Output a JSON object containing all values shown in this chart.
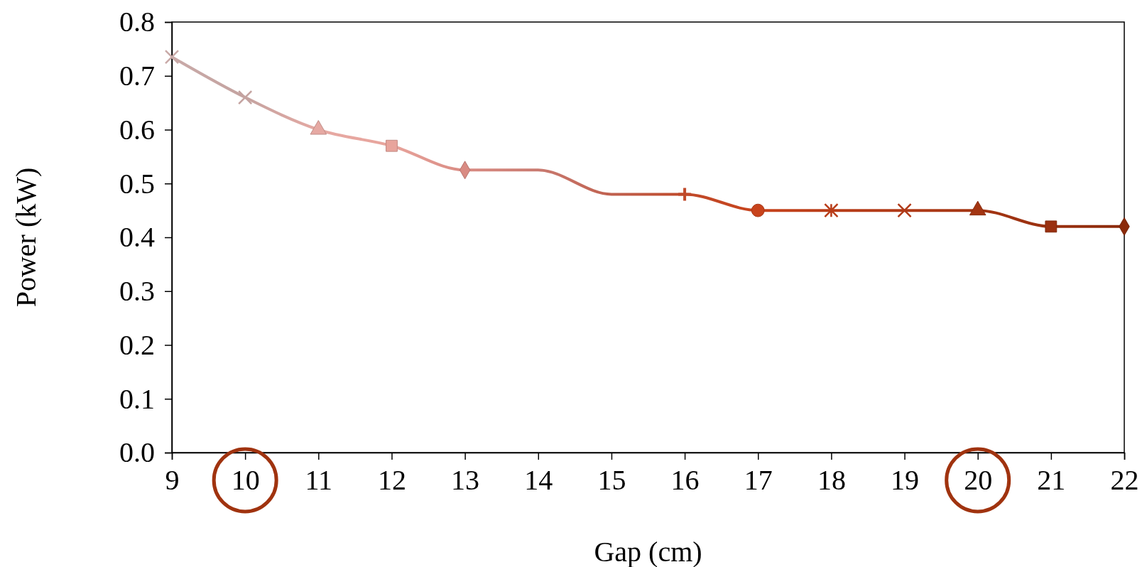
{
  "chart_data": {
    "type": "line",
    "xlabel": "Gap (cm)",
    "ylabel": "Power (kW)",
    "x": [
      9,
      10,
      11,
      12,
      13,
      14,
      15,
      16,
      17,
      18,
      19,
      20,
      21,
      22
    ],
    "xlim": [
      9,
      22
    ],
    "xticks": [
      9,
      10,
      11,
      12,
      13,
      14,
      15,
      16,
      17,
      18,
      19,
      20,
      21,
      22
    ],
    "ylim": [
      0,
      0.8
    ],
    "yticks": [
      {
        "value": 0,
        "label": "0.0"
      },
      {
        "value": 0.1,
        "label": "0.1"
      },
      {
        "value": 0.2,
        "label": "0.2"
      },
      {
        "value": 0.3,
        "label": "0.3"
      },
      {
        "value": 0.4,
        "label": "0.4"
      },
      {
        "value": 0.5,
        "label": "0.5"
      },
      {
        "value": 0.6,
        "label": "0.6"
      },
      {
        "value": 0.7,
        "label": "0.7"
      },
      {
        "value": 0.8,
        "label": "0.8"
      }
    ],
    "grid": false,
    "series": [
      {
        "values": [
          0.735,
          0.66,
          0.6,
          0.57,
          0.525,
          0.525,
          0.48,
          0.48,
          0.45,
          0.45,
          0.45,
          0.45,
          0.42,
          0.42
        ],
        "colors": [
          "#c9aaa8",
          "#c4a3a0",
          "#e6a9a3",
          "#e8a49c",
          "#d98b83",
          "#c97a70",
          "#c0614f",
          "#c04a2a",
          "#c8431c",
          "#b83c18",
          "#b03a18",
          "#a33512",
          "#9a3010",
          "#8b2a0a"
        ],
        "marker": [
          "cross",
          "cross",
          "triangle",
          "square",
          "diamond",
          "none",
          "none",
          "plus",
          "circle",
          "asterisk",
          "cross",
          "triangle",
          "square",
          "diamond"
        ]
      }
    ]
  }
}
